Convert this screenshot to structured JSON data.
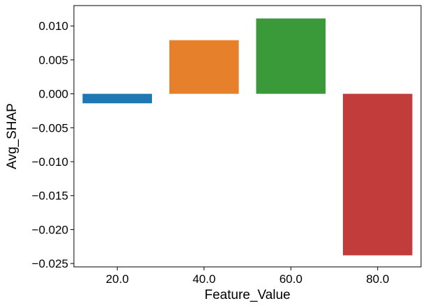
{
  "chart_data": {
    "type": "bar",
    "title": "",
    "xlabel": "Feature_Value",
    "ylabel": "Avg_SHAP",
    "categories": [
      "20.0",
      "40.0",
      "60.0",
      "80.0"
    ],
    "values": [
      -0.0014,
      0.0079,
      0.0111,
      -0.0238
    ],
    "colors": [
      "#1f77b4",
      "#e6802b",
      "#3a9a3a",
      "#c23c3c"
    ],
    "ylim": [
      -0.0255,
      0.013
    ],
    "yticks": [
      0.01,
      0.005,
      0.0,
      -0.005,
      -0.01,
      -0.015,
      -0.02,
      -0.025
    ],
    "ytick_labels": [
      "0.010",
      "0.005",
      "0.000",
      "−0.005",
      "−0.010",
      "−0.015",
      "−0.020",
      "−0.025"
    ],
    "grid": false,
    "legend": "none"
  }
}
